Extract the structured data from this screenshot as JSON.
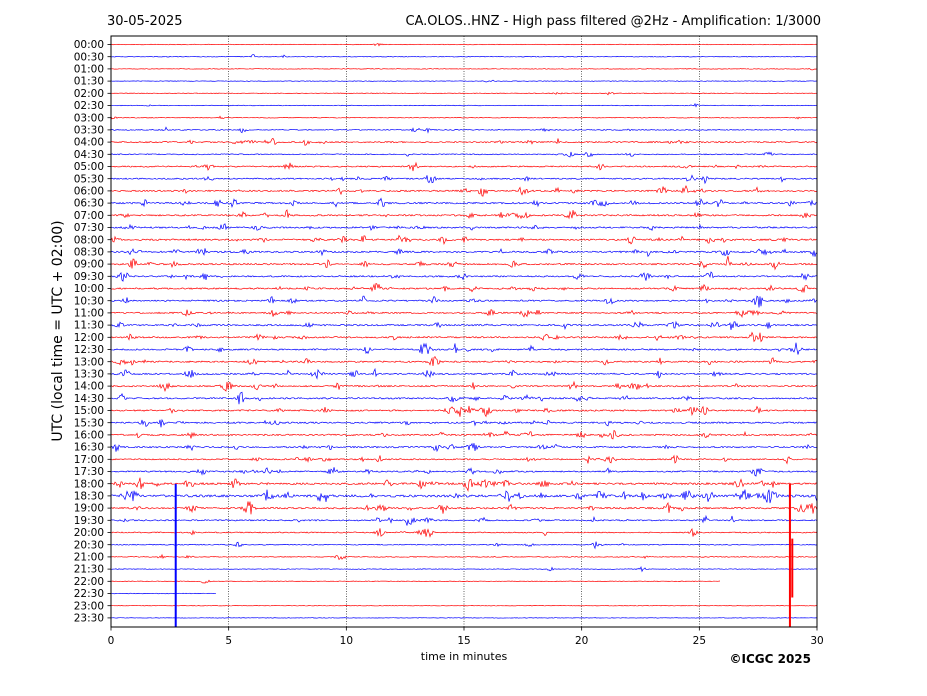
{
  "header": {
    "date": "30-05-2025",
    "title": "CA.OLOS..HNZ - High pass filtered @2Hz - Amplification: 1/3000"
  },
  "footer": {
    "copyright": "©ICGC 2025"
  },
  "chart_data": {
    "type": "line",
    "xlabel": "time in minutes",
    "ylabel": "UTC (local time = UTC + 02:00)",
    "xlim": [
      0,
      30
    ],
    "xticks": [
      0,
      5,
      10,
      15,
      20,
      25,
      30
    ],
    "vertical_gridlines_at": [
      5,
      10,
      15,
      20,
      25
    ],
    "row_labels": [
      "00:00",
      "00:30",
      "01:00",
      "01:30",
      "02:00",
      "02:30",
      "03:00",
      "03:30",
      "04:00",
      "04:30",
      "05:00",
      "05:30",
      "06:00",
      "06:30",
      "07:00",
      "07:30",
      "08:00",
      "08:30",
      "09:00",
      "09:30",
      "10:00",
      "10:30",
      "11:00",
      "11:30",
      "12:00",
      "12:30",
      "13:00",
      "13:30",
      "14:00",
      "14:30",
      "15:00",
      "15:30",
      "16:00",
      "16:30",
      "17:00",
      "17:30",
      "18:00",
      "18:30",
      "19:00",
      "19:30",
      "20:00",
      "20:30",
      "21:00",
      "21:30",
      "22:00",
      "22:30",
      "23:00",
      "23:30"
    ],
    "row_colors": [
      "#ff0000",
      "#0000ff"
    ],
    "activity": [
      0.05,
      0.06,
      0.05,
      0.05,
      0.06,
      0.06,
      0.12,
      0.22,
      0.45,
      0.25,
      0.4,
      0.45,
      0.55,
      0.6,
      0.55,
      0.55,
      0.6,
      0.65,
      0.55,
      0.5,
      0.55,
      0.5,
      0.5,
      0.55,
      0.55,
      0.55,
      0.55,
      0.55,
      0.5,
      0.55,
      0.55,
      0.55,
      0.55,
      0.5,
      0.45,
      0.5,
      0.8,
      1.0,
      0.6,
      0.45,
      0.3,
      0.2,
      0.15,
      0.08,
      0.05,
      0.05,
      0.0,
      0.0
    ],
    "trace_end_minutes": {
      "44": 25.9,
      "45": 4.5
    },
    "spikes": [
      {
        "row": 37,
        "minute": 2.75,
        "direction": "down",
        "color": "#0000ff"
      },
      {
        "row": 37,
        "minute": 28.85,
        "direction": "down",
        "color": "#ff0000"
      },
      {
        "row": 45,
        "minute": 28.95,
        "direction": "up",
        "color": "#ff0000"
      }
    ]
  },
  "colors": {
    "red_trace": "#ff0000",
    "blue_trace": "#0000ff",
    "axis": "#000000"
  }
}
